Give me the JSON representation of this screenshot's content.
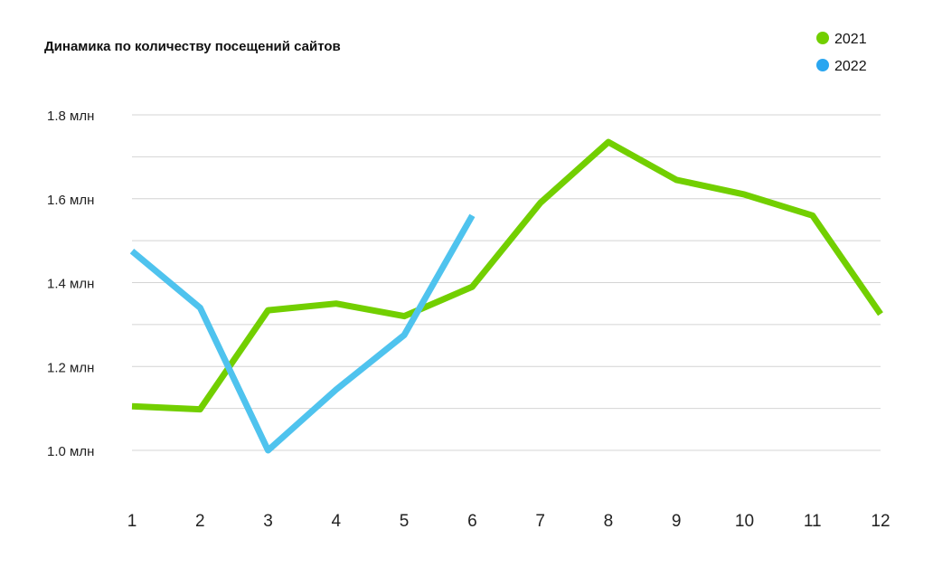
{
  "chart_data": {
    "type": "line",
    "title": "Динамика по количеству посещений сайтов",
    "xlabel": "",
    "ylabel": "",
    "categories": [
      "1",
      "2",
      "3",
      "4",
      "5",
      "6",
      "7",
      "8",
      "9",
      "10",
      "11",
      "12"
    ],
    "ylim": [
      1.0,
      1.8
    ],
    "yticks": [
      {
        "value": 1.0,
        "label": "1.0 млн"
      },
      {
        "value": 1.2,
        "label": "1.2 млн"
      },
      {
        "value": 1.4,
        "label": "1.4 млн"
      },
      {
        "value": 1.6,
        "label": "1.6 млн"
      },
      {
        "value": 1.8,
        "label": "1.8 млн"
      }
    ],
    "grid_values": [
      1.0,
      1.1,
      1.2,
      1.3,
      1.4,
      1.5,
      1.6,
      1.7,
      1.8
    ],
    "grid": true,
    "legend_position": "top-right",
    "series": [
      {
        "name": "2021",
        "color": "#72cf00",
        "x": [
          1,
          2,
          3,
          4,
          5,
          6,
          7,
          8,
          9,
          10,
          11,
          12
        ],
        "values": [
          1.105,
          1.098,
          1.334,
          1.35,
          1.32,
          1.39,
          1.59,
          1.735,
          1.645,
          1.61,
          1.56,
          1.325
        ]
      },
      {
        "name": "2022",
        "color": "#4fc3ee",
        "legend_color": "#2aa6f0",
        "x": [
          1,
          2,
          3,
          4,
          5,
          6
        ],
        "values": [
          1.475,
          1.34,
          1.0,
          1.145,
          1.275,
          1.56
        ]
      }
    ]
  }
}
